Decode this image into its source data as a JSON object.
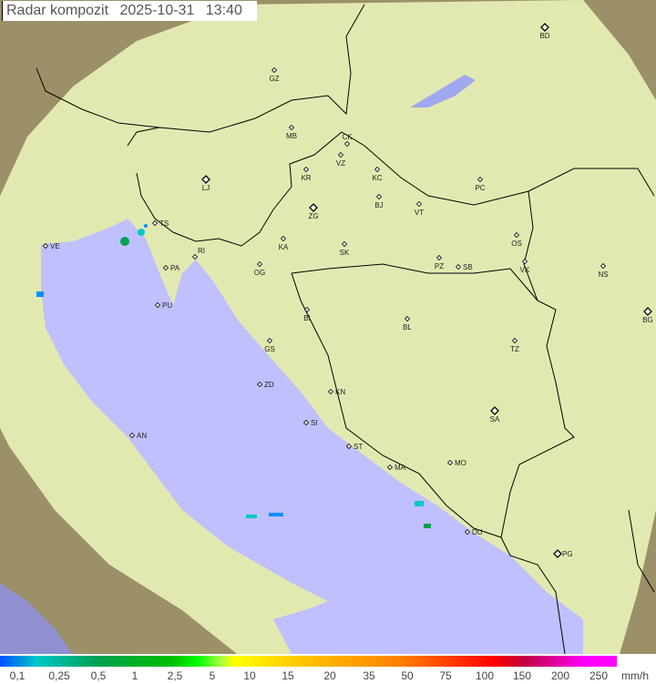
{
  "title": {
    "product": "Radar kompozit",
    "date": "2025-10-31",
    "time": "13:40"
  },
  "colors": {
    "sea": "#c0c0ff",
    "radar_coverage": "#e8f0b0",
    "terrain": "#b8a870",
    "border": "#000000"
  },
  "legend": {
    "unit": "mm/h",
    "ticks": [
      "0,1",
      "0,25",
      "0,5",
      "1",
      "2,5",
      "5",
      "10",
      "15",
      "20",
      "35",
      "50",
      "75",
      "100",
      "150",
      "200",
      "250"
    ]
  },
  "cities": [
    {
      "code": "BD",
      "big": true
    },
    {
      "code": "GZ"
    },
    {
      "code": "MB"
    },
    {
      "code": "CK"
    },
    {
      "code": "VZ"
    },
    {
      "code": "KR"
    },
    {
      "code": "KC"
    },
    {
      "code": "LJ",
      "big": true
    },
    {
      "code": "ZG",
      "big": true
    },
    {
      "code": "BJ"
    },
    {
      "code": "VT"
    },
    {
      "code": "PC"
    },
    {
      "code": "TS"
    },
    {
      "code": "VE"
    },
    {
      "code": "RI"
    },
    {
      "code": "KA"
    },
    {
      "code": "SK"
    },
    {
      "code": "OS"
    },
    {
      "code": "PA"
    },
    {
      "code": "OG"
    },
    {
      "code": "PZ"
    },
    {
      "code": "SB"
    },
    {
      "code": "VK"
    },
    {
      "code": "NS"
    },
    {
      "code": "PU"
    },
    {
      "code": "BI"
    },
    {
      "code": "BL"
    },
    {
      "code": "BG",
      "big": true
    },
    {
      "code": "GS"
    },
    {
      "code": "TZ"
    },
    {
      "code": "ZD"
    },
    {
      "code": "KN"
    },
    {
      "code": "SA",
      "big": true
    },
    {
      "code": "SI"
    },
    {
      "code": "AN"
    },
    {
      "code": "ST"
    },
    {
      "code": "MA"
    },
    {
      "code": "MO"
    },
    {
      "code": "DU"
    },
    {
      "code": "PG",
      "big": true
    }
  ]
}
